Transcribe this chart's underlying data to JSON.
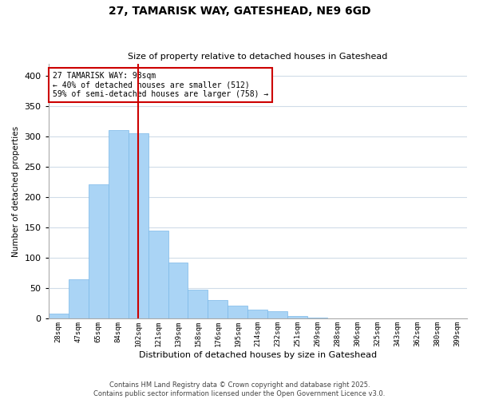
{
  "title_line1": "27, TAMARISK WAY, GATESHEAD, NE9 6GD",
  "title_line2": "Size of property relative to detached houses in Gateshead",
  "xlabel": "Distribution of detached houses by size in Gateshead",
  "ylabel": "Number of detached properties",
  "bar_labels": [
    "28sqm",
    "47sqm",
    "65sqm",
    "84sqm",
    "102sqm",
    "121sqm",
    "139sqm",
    "158sqm",
    "176sqm",
    "195sqm",
    "214sqm",
    "232sqm",
    "251sqm",
    "269sqm",
    "288sqm",
    "306sqm",
    "325sqm",
    "343sqm",
    "362sqm",
    "380sqm",
    "399sqm"
  ],
  "bar_heights": [
    9,
    65,
    222,
    311,
    305,
    145,
    93,
    48,
    31,
    22,
    15,
    12,
    4,
    2,
    1,
    1,
    1,
    1,
    1,
    1,
    1
  ],
  "bar_color": "#aad4f5",
  "bar_edge_color": "#7ab8e8",
  "vline_x": 4,
  "vline_color": "#cc0000",
  "annotation_line1": "27 TAMARISK WAY: 98sqm",
  "annotation_line2": "← 40% of detached houses are smaller (512)",
  "annotation_line3": "59% of semi-detached houses are larger (758) →",
  "annotation_box_color": "#ffffff",
  "annotation_box_edge": "#cc0000",
  "ylim": [
    0,
    420
  ],
  "yticks": [
    0,
    50,
    100,
    150,
    200,
    250,
    300,
    350,
    400
  ],
  "footer_line1": "Contains HM Land Registry data © Crown copyright and database right 2025.",
  "footer_line2": "Contains public sector information licensed under the Open Government Licence v3.0.",
  "background_color": "#ffffff",
  "grid_color": "#d0dce8"
}
